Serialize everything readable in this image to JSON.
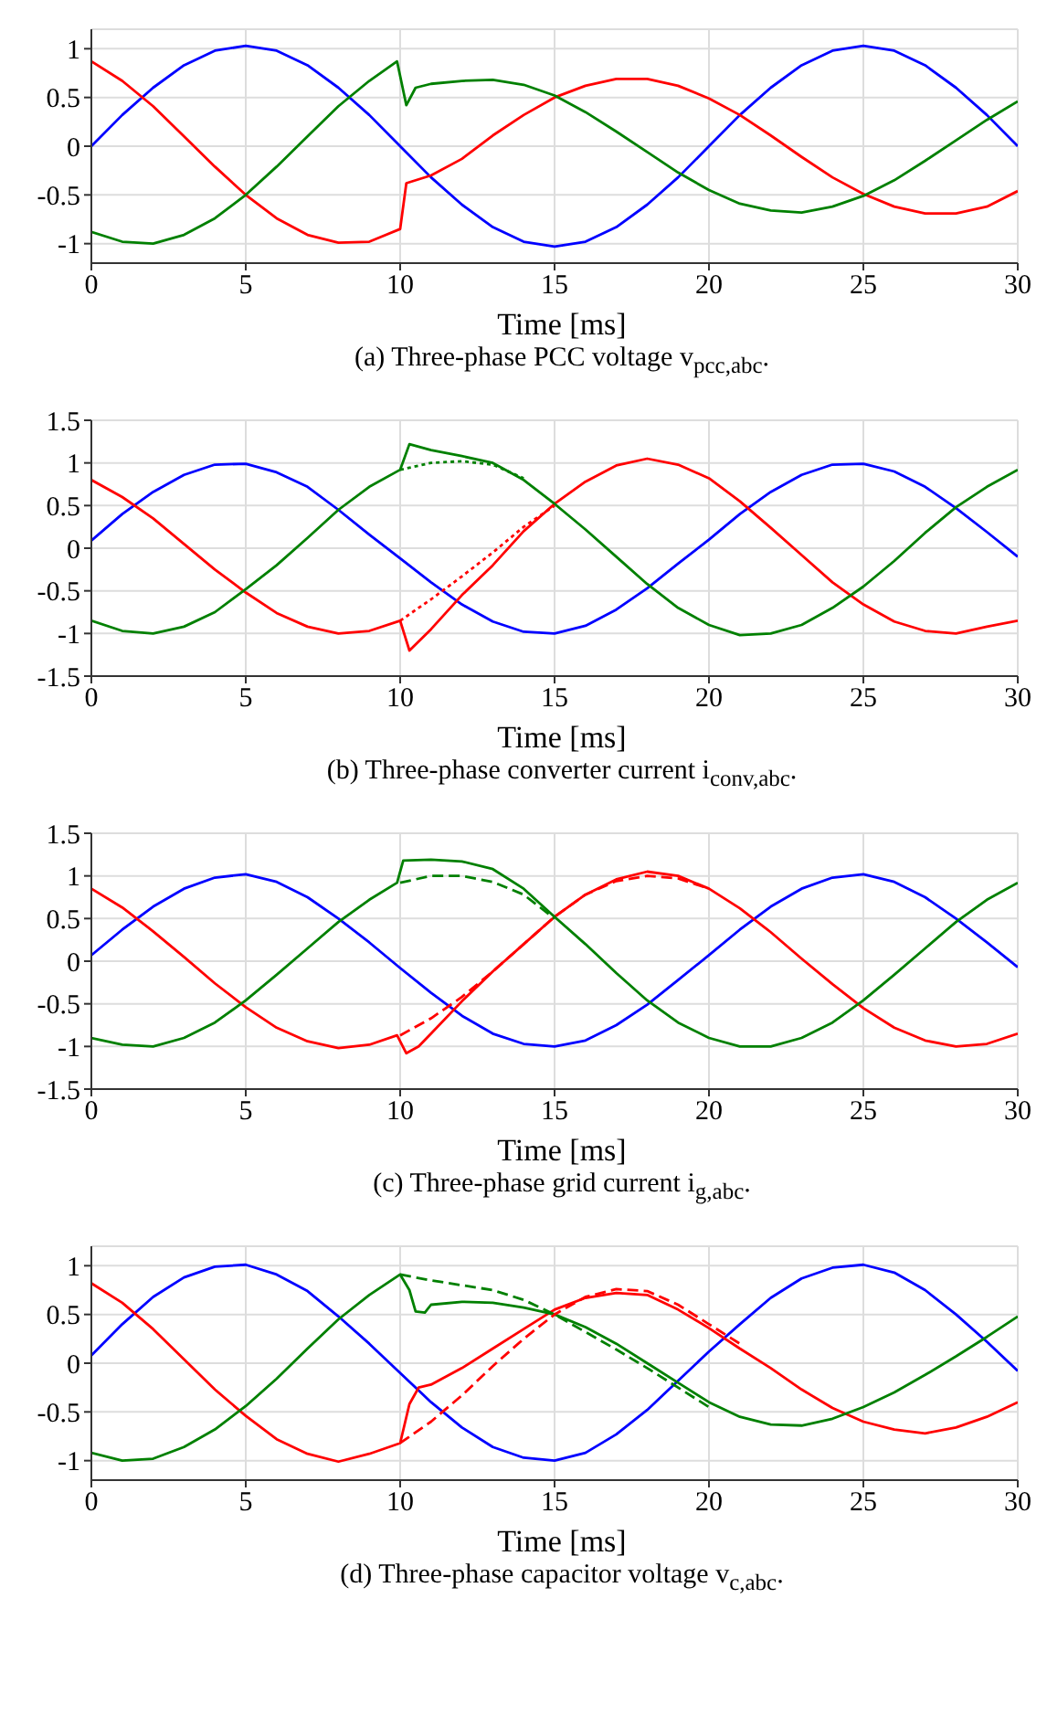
{
  "chart_data": [
    {
      "type": "line",
      "title": "(a) Three-phase PCC voltage v$_{pcc,abc}$.",
      "xlabel": "Time [ms]",
      "xlim": [
        0,
        30
      ],
      "xticks": [
        0,
        5,
        10,
        15,
        20,
        25,
        30
      ],
      "ylim": [
        -1.2,
        1.2
      ],
      "yticks": [
        -1,
        -0.5,
        0,
        0.5,
        1
      ],
      "grid": true,
      "legend": false,
      "marker": "none",
      "line_style": "solid",
      "series": [
        {
          "color": "#0000ff",
          "x": [
            0,
            1,
            2,
            3,
            4,
            5,
            6,
            7,
            8,
            9,
            10,
            11,
            12,
            13,
            14,
            15,
            16,
            17,
            18,
            19,
            20,
            21,
            22,
            23,
            24,
            25,
            26,
            27,
            28,
            29,
            30
          ],
          "values": [
            0,
            0.32,
            0.6,
            0.83,
            0.98,
            1.03,
            0.98,
            0.83,
            0.6,
            0.32,
            0,
            -0.32,
            -0.6,
            -0.83,
            -0.98,
            -1.03,
            -0.98,
            -0.83,
            -0.6,
            -0.32,
            0,
            0.32,
            0.6,
            0.83,
            0.98,
            1.03,
            0.98,
            0.83,
            0.6,
            0.32,
            0
          ]
        },
        {
          "color": "#ff0000",
          "x": [
            0,
            1,
            2,
            3,
            4,
            5,
            6,
            7,
            8,
            9,
            10,
            10.2,
            11,
            12,
            13,
            14,
            15,
            16,
            17,
            18,
            19,
            20,
            21,
            22,
            23,
            24,
            25,
            26,
            27,
            28,
            29,
            30
          ],
          "values": [
            0.87,
            0.67,
            0.41,
            0.1,
            -0.21,
            -0.5,
            -0.74,
            -0.91,
            -0.99,
            -0.98,
            -0.85,
            -0.38,
            -0.3,
            -0.13,
            0.11,
            0.32,
            0.5,
            0.62,
            0.69,
            0.69,
            0.62,
            0.49,
            0.32,
            0.11,
            -0.11,
            -0.32,
            -0.49,
            -0.62,
            -0.69,
            -0.69,
            -0.62,
            -0.46
          ]
        },
        {
          "color": "#008000",
          "x": [
            0,
            1,
            2,
            3,
            4,
            5,
            6,
            7,
            8,
            9,
            9.9,
            10.2,
            10.5,
            11,
            12,
            13,
            14,
            15,
            16,
            17,
            18,
            19,
            20,
            21,
            22,
            23,
            24,
            25,
            26,
            27,
            28,
            29,
            30
          ],
          "values": [
            -0.88,
            -0.98,
            -1.0,
            -0.91,
            -0.74,
            -0.5,
            -0.21,
            0.1,
            0.41,
            0.67,
            0.87,
            0.42,
            0.6,
            0.64,
            0.67,
            0.68,
            0.63,
            0.52,
            0.35,
            0.15,
            -0.06,
            -0.27,
            -0.45,
            -0.59,
            -0.66,
            -0.68,
            -0.62,
            -0.51,
            -0.35,
            -0.15,
            0.06,
            0.27,
            0.46
          ]
        }
      ]
    },
    {
      "type": "line",
      "title": "(b) Three-phase converter current i$_{conv,abc}$.",
      "xlabel": "Time [ms]",
      "xlim": [
        0,
        30
      ],
      "xticks": [
        0,
        5,
        10,
        15,
        20,
        25,
        30
      ],
      "ylim": [
        -1.5,
        1.5
      ],
      "yticks": [
        -1.5,
        -1,
        -0.5,
        0,
        0.5,
        1,
        1.5
      ],
      "grid": true,
      "legend": false,
      "marker": "none",
      "line_style": "solid",
      "series": [
        {
          "color": "#0000ff",
          "x": [
            0,
            1,
            2,
            3,
            4,
            5,
            6,
            7,
            8,
            9,
            10,
            11,
            12,
            13,
            14,
            15,
            16,
            17,
            18,
            19,
            20,
            21,
            22,
            23,
            24,
            25,
            26,
            27,
            28,
            29,
            30
          ],
          "values": [
            0.09,
            0.4,
            0.66,
            0.86,
            0.98,
            0.99,
            0.89,
            0.72,
            0.45,
            0.16,
            -0.12,
            -0.4,
            -0.66,
            -0.86,
            -0.98,
            -1.0,
            -0.91,
            -0.72,
            -0.47,
            -0.18,
            0.1,
            0.4,
            0.66,
            0.86,
            0.98,
            0.99,
            0.9,
            0.72,
            0.47,
            0.19,
            -0.1
          ]
        },
        {
          "color": "#ff0000",
          "x": [
            0,
            1,
            2,
            3,
            4,
            5,
            6,
            7,
            8,
            9,
            10,
            10.3,
            11,
            12,
            13,
            14,
            15,
            16,
            17,
            18,
            19,
            20,
            21,
            22,
            23,
            24,
            25,
            26,
            27,
            28,
            29,
            30
          ],
          "values": [
            0.8,
            0.6,
            0.35,
            0.05,
            -0.25,
            -0.52,
            -0.76,
            -0.92,
            -1.0,
            -0.97,
            -0.85,
            -1.2,
            -0.95,
            -0.55,
            -0.2,
            0.2,
            0.52,
            0.78,
            0.97,
            1.05,
            0.98,
            0.82,
            0.55,
            0.24,
            -0.08,
            -0.4,
            -0.66,
            -0.86,
            -0.97,
            -1.0,
            -0.92,
            -0.85
          ]
        },
        {
          "color": "#008000",
          "x": [
            0,
            1,
            2,
            3,
            4,
            5,
            6,
            7,
            8,
            9,
            10,
            10.3,
            11,
            12,
            13,
            14,
            15,
            16,
            17,
            18,
            19,
            20,
            21,
            22,
            23,
            24,
            25,
            26,
            27,
            28,
            29,
            30
          ],
          "values": [
            -0.85,
            -0.97,
            -1.0,
            -0.92,
            -0.75,
            -0.48,
            -0.2,
            0.12,
            0.45,
            0.72,
            0.92,
            1.22,
            1.15,
            1.08,
            1.0,
            0.8,
            0.52,
            0.22,
            -0.1,
            -0.42,
            -0.7,
            -0.9,
            -1.02,
            -1.0,
            -0.9,
            -0.7,
            -0.45,
            -0.15,
            0.18,
            0.48,
            0.72,
            0.92
          ]
        },
        {
          "color": "#ff0000",
          "line_style": "dotted",
          "x": [
            10,
            11,
            12,
            13,
            14,
            15
          ],
          "values": [
            -0.85,
            -0.6,
            -0.33,
            -0.05,
            0.25,
            0.5
          ]
        },
        {
          "color": "#008000",
          "line_style": "dotted",
          "x": [
            10,
            11,
            12,
            13,
            14
          ],
          "values": [
            0.92,
            1.0,
            1.02,
            0.98,
            0.82
          ]
        }
      ]
    },
    {
      "type": "line",
      "title": "(c) Three-phase grid current i$_{g,abc}$.",
      "xlabel": "Time [ms]",
      "xlim": [
        0,
        30
      ],
      "xticks": [
        0,
        5,
        10,
        15,
        20,
        25,
        30
      ],
      "ylim": [
        -1.5,
        1.5
      ],
      "yticks": [
        -1.5,
        -1,
        -0.5,
        0,
        0.5,
        1,
        1.5
      ],
      "grid": true,
      "legend": false,
      "marker": "none",
      "line_style": "solid",
      "series": [
        {
          "color": "#0000ff",
          "x": [
            0,
            1,
            2,
            3,
            4,
            5,
            6,
            7,
            8,
            9,
            10,
            11,
            12,
            13,
            14,
            15,
            16,
            17,
            18,
            19,
            20,
            21,
            22,
            23,
            24,
            25,
            26,
            27,
            28,
            29,
            30
          ],
          "values": [
            0.07,
            0.37,
            0.64,
            0.85,
            0.98,
            1.02,
            0.93,
            0.75,
            0.5,
            0.22,
            -0.08,
            -0.37,
            -0.64,
            -0.85,
            -0.97,
            -1.0,
            -0.93,
            -0.75,
            -0.51,
            -0.22,
            0.07,
            0.37,
            0.64,
            0.85,
            0.98,
            1.02,
            0.93,
            0.75,
            0.5,
            0.22,
            -0.07
          ]
        },
        {
          "color": "#ff0000",
          "x": [
            0,
            1,
            2,
            3,
            4,
            5,
            6,
            7,
            8,
            9,
            9.9,
            10.2,
            10.6,
            11,
            12,
            13,
            14,
            15,
            16,
            17,
            18,
            19,
            20,
            21,
            22,
            23,
            24,
            25,
            26,
            27,
            28,
            29,
            30
          ],
          "values": [
            0.85,
            0.63,
            0.35,
            0.05,
            -0.26,
            -0.54,
            -0.78,
            -0.94,
            -1.02,
            -0.98,
            -0.87,
            -1.08,
            -1.0,
            -0.85,
            -0.47,
            -0.12,
            0.2,
            0.52,
            0.78,
            0.96,
            1.05,
            1.0,
            0.85,
            0.62,
            0.34,
            0.03,
            -0.27,
            -0.55,
            -0.78,
            -0.93,
            -1.0,
            -0.97,
            -0.85
          ]
        },
        {
          "color": "#008000",
          "x": [
            0,
            1,
            2,
            3,
            4,
            5,
            6,
            7,
            8,
            9,
            9.9,
            10.1,
            11,
            12,
            13,
            14,
            15,
            16,
            17,
            18,
            19,
            20,
            21,
            22,
            23,
            24,
            25,
            26,
            27,
            28,
            29,
            30
          ],
          "values": [
            -0.9,
            -0.98,
            -1.0,
            -0.9,
            -0.72,
            -0.46,
            -0.16,
            0.15,
            0.46,
            0.72,
            0.92,
            1.18,
            1.19,
            1.17,
            1.08,
            0.85,
            0.52,
            0.2,
            -0.14,
            -0.46,
            -0.72,
            -0.9,
            -1.0,
            -1.0,
            -0.9,
            -0.72,
            -0.46,
            -0.16,
            0.15,
            0.46,
            0.72,
            0.92
          ]
        },
        {
          "color": "#ff0000",
          "line_style": "dashed",
          "x": [
            10,
            11,
            12,
            13,
            14,
            15,
            16,
            17,
            18,
            19,
            20
          ],
          "values": [
            -0.87,
            -0.67,
            -0.42,
            -0.12,
            0.2,
            0.52,
            0.78,
            0.94,
            1.0,
            0.97,
            0.85
          ]
        },
        {
          "color": "#008000",
          "line_style": "dashed",
          "x": [
            10,
            11,
            12,
            13,
            14,
            15
          ],
          "values": [
            0.92,
            1.0,
            1.0,
            0.93,
            0.78,
            0.5
          ]
        }
      ]
    },
    {
      "type": "line",
      "title": "(d) Three-phase capacitor voltage v$_{c,abc}$.",
      "xlabel": "Time [ms]",
      "xlim": [
        0,
        30
      ],
      "xticks": [
        0,
        5,
        10,
        15,
        20,
        25,
        30
      ],
      "ylim": [
        -1.2,
        1.2
      ],
      "yticks": [
        -1,
        -0.5,
        0,
        0.5,
        1
      ],
      "grid": true,
      "legend": false,
      "marker": "none",
      "line_style": "solid",
      "series": [
        {
          "color": "#0000ff",
          "x": [
            0,
            1,
            2,
            3,
            4,
            5,
            6,
            7,
            8,
            9,
            10,
            11,
            12,
            13,
            14,
            15,
            16,
            17,
            18,
            19,
            20,
            21,
            22,
            23,
            24,
            25,
            26,
            27,
            28,
            29,
            30
          ],
          "values": [
            0.08,
            0.4,
            0.68,
            0.88,
            0.99,
            1.01,
            0.91,
            0.74,
            0.48,
            0.2,
            -0.1,
            -0.4,
            -0.66,
            -0.86,
            -0.97,
            -1.0,
            -0.92,
            -0.73,
            -0.48,
            -0.18,
            0.12,
            0.4,
            0.67,
            0.87,
            0.98,
            1.01,
            0.93,
            0.75,
            0.5,
            0.22,
            -0.08
          ]
        },
        {
          "color": "#ff0000",
          "x": [
            0,
            1,
            2,
            3,
            4,
            5,
            6,
            7,
            8,
            9,
            10,
            10.3,
            10.6,
            11,
            12,
            13,
            14,
            15,
            16,
            17,
            18,
            19,
            20,
            21,
            22,
            23,
            24,
            25,
            26,
            27,
            28,
            29,
            30
          ],
          "values": [
            0.82,
            0.62,
            0.35,
            0.04,
            -0.27,
            -0.54,
            -0.78,
            -0.93,
            -1.01,
            -0.93,
            -0.82,
            -0.42,
            -0.25,
            -0.22,
            -0.05,
            0.15,
            0.35,
            0.55,
            0.67,
            0.72,
            0.7,
            0.55,
            0.36,
            0.15,
            -0.05,
            -0.27,
            -0.46,
            -0.6,
            -0.68,
            -0.72,
            -0.66,
            -0.55,
            -0.4
          ]
        },
        {
          "color": "#008000",
          "x": [
            0,
            1,
            2,
            3,
            4,
            5,
            6,
            7,
            8,
            9,
            10,
            10.3,
            10.5,
            10.8,
            11,
            12,
            13,
            14,
            15,
            16,
            17,
            18,
            19,
            20,
            21,
            22,
            23,
            24,
            25,
            26,
            27,
            28,
            29,
            30
          ],
          "values": [
            -0.92,
            -1.0,
            -0.98,
            -0.86,
            -0.68,
            -0.44,
            -0.16,
            0.15,
            0.45,
            0.7,
            0.91,
            0.75,
            0.53,
            0.52,
            0.6,
            0.63,
            0.62,
            0.57,
            0.5,
            0.37,
            0.2,
            0.0,
            -0.2,
            -0.4,
            -0.55,
            -0.63,
            -0.64,
            -0.57,
            -0.45,
            -0.3,
            -0.12,
            0.07,
            0.27,
            0.48
          ]
        },
        {
          "color": "#ff0000",
          "line_style": "dashed",
          "x": [
            10,
            11,
            12,
            13,
            14,
            15,
            16,
            17,
            18,
            19,
            20,
            21
          ],
          "values": [
            -0.82,
            -0.6,
            -0.33,
            -0.03,
            0.25,
            0.5,
            0.68,
            0.76,
            0.74,
            0.6,
            0.4,
            0.2
          ]
        },
        {
          "color": "#008000",
          "line_style": "dashed",
          "x": [
            10,
            11,
            12,
            13,
            14,
            15,
            16,
            17,
            18,
            19,
            20
          ],
          "values": [
            0.91,
            0.85,
            0.8,
            0.75,
            0.65,
            0.5,
            0.32,
            0.14,
            -0.05,
            -0.25,
            -0.45
          ]
        }
      ]
    }
  ]
}
